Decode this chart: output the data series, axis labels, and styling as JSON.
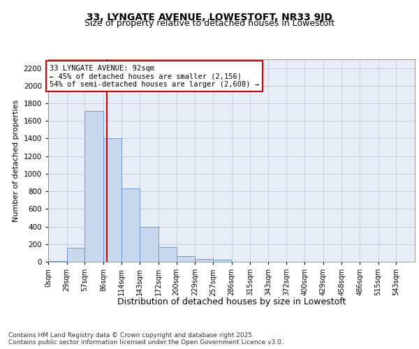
{
  "title": "33, LYNGATE AVENUE, LOWESTOFT, NR33 9JD",
  "subtitle": "Size of property relative to detached houses in Lowestoft",
  "xlabel": "Distribution of detached houses by size in Lowestoft",
  "ylabel": "Number of detached properties",
  "bin_edges": [
    0,
    29,
    57,
    86,
    114,
    143,
    172,
    200,
    229,
    257,
    286,
    315,
    343,
    372,
    400,
    429,
    458,
    486,
    515,
    543,
    572
  ],
  "bar_heights": [
    5,
    160,
    1710,
    1400,
    830,
    400,
    165,
    65,
    30,
    20,
    0,
    0,
    0,
    0,
    0,
    0,
    0,
    0,
    0,
    0
  ],
  "bar_color": "#c8d8ee",
  "bar_edge_color": "#6090c8",
  "grid_color": "#c0cce0",
  "background_color": "#e8eef8",
  "red_line_x": 92,
  "red_line_color": "#cc0000",
  "annotation_text": "33 LYNGATE AVENUE: 92sqm\n← 45% of detached houses are smaller (2,156)\n54% of semi-detached houses are larger (2,608) →",
  "annotation_box_color": "#cc0000",
  "ylim": [
    0,
    2300
  ],
  "yticks": [
    0,
    200,
    400,
    600,
    800,
    1000,
    1200,
    1400,
    1600,
    1800,
    2000,
    2200
  ],
  "footer_text": "Contains HM Land Registry data © Crown copyright and database right 2025.\nContains public sector information licensed under the Open Government Licence v3.0.",
  "title_fontsize": 10,
  "subtitle_fontsize": 9,
  "tick_label_fontsize": 7,
  "ylabel_fontsize": 8,
  "xlabel_fontsize": 9,
  "footer_fontsize": 6.5
}
